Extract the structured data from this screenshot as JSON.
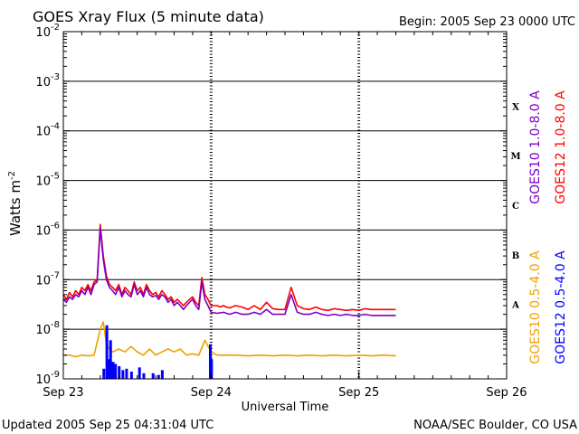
{
  "chart_data": {
    "type": "line",
    "title": "GOES Xray Flux (5 minute data)",
    "begin_label": "Begin:  2005 Sep 23 0000 UTC",
    "xlabel": "Universal Time",
    "ylabel": "Watts",
    "ylabel_unit_exp": "-2",
    "yscale": "log",
    "ylim": [
      1e-09,
      0.01
    ],
    "xlim_hours": [
      0,
      72
    ],
    "x_ticks": [
      {
        "hours": 0,
        "label": "Sep 23"
      },
      {
        "hours": 24,
        "label": "Sep 24"
      },
      {
        "hours": 48,
        "label": "Sep 25"
      },
      {
        "hours": 72,
        "label": "Sep 26"
      }
    ],
    "y_ticks": [
      {
        "value": 1e-09,
        "base": "10",
        "exp": "-9"
      },
      {
        "value": 1e-08,
        "base": "10",
        "exp": "-8"
      },
      {
        "value": 1e-07,
        "base": "10",
        "exp": "-7"
      },
      {
        "value": 1e-06,
        "base": "10",
        "exp": "-6"
      },
      {
        "value": 1e-05,
        "base": "10",
        "exp": "-5"
      },
      {
        "value": 0.0001,
        "base": "10",
        "exp": "-4"
      },
      {
        "value": 0.001,
        "base": "10",
        "exp": "-3"
      },
      {
        "value": 0.01,
        "base": "10",
        "exp": "-2"
      }
    ],
    "flare_classes": [
      {
        "label": "A",
        "value": 3.16e-08
      },
      {
        "label": "B",
        "value": 3.16e-07
      },
      {
        "label": "C",
        "value": 3.16e-06
      },
      {
        "label": "M",
        "value": 3.16e-05
      },
      {
        "label": "X",
        "value": 0.000316
      }
    ],
    "gridlines": [
      1e-08,
      1e-07,
      1e-06,
      1e-05,
      0.0001,
      0.001
    ],
    "legend": [
      {
        "label": "GOES10 1.0-8.0 A",
        "color": "#7a00c8"
      },
      {
        "label": "GOES12 1.0-8.0 A",
        "color": "#ff0000"
      },
      {
        "label": "GOES10 0.5-4.0 A",
        "color": "#f0a000"
      },
      {
        "label": "GOES12 0.5-4.0 A",
        "color": "#0000ff"
      }
    ],
    "series": [
      {
        "name": "GOES12 1.0-8.0 A",
        "color": "#ff0000",
        "style": "line",
        "x": [
          0,
          0.5,
          1,
          1.5,
          2,
          2.5,
          3,
          3.5,
          4,
          4.5,
          5,
          5.5,
          6,
          6.5,
          7,
          7.5,
          8,
          8.5,
          9,
          9.5,
          10,
          10.5,
          11,
          11.5,
          12,
          12.5,
          13,
          13.5,
          14,
          14.5,
          15,
          15.5,
          16,
          16.5,
          17,
          17.5,
          18,
          18.5,
          19,
          19.5,
          20,
          20.5,
          21,
          21.5,
          22,
          22.5,
          23,
          23.5,
          24,
          24.5,
          25,
          25.5,
          26,
          26.5,
          27,
          28,
          29,
          30,
          31,
          32,
          33,
          34,
          35,
          36,
          37,
          38,
          39,
          40,
          41,
          42,
          43,
          44,
          45,
          46,
          47,
          48,
          49,
          50,
          51,
          52,
          53,
          54
        ],
        "y": [
          5e-08,
          4e-08,
          5.5e-08,
          4.5e-08,
          6e-08,
          5e-08,
          7e-08,
          6e-08,
          8e-08,
          6e-08,
          9e-08,
          1e-07,
          1.3e-06,
          3e-07,
          1.2e-07,
          8e-08,
          7e-08,
          6e-08,
          8e-08,
          5e-08,
          7e-08,
          6e-08,
          5e-08,
          9e-08,
          6e-08,
          7e-08,
          5e-08,
          8e-08,
          6e-08,
          5e-08,
          5.5e-08,
          4.5e-08,
          6e-08,
          5e-08,
          4e-08,
          4.5e-08,
          3.5e-08,
          4e-08,
          3.5e-08,
          3e-08,
          3.5e-08,
          4e-08,
          4.5e-08,
          3.5e-08,
          3e-08,
          1.1e-07,
          5e-08,
          4e-08,
          3e-08,
          3e-08,
          3e-08,
          2.8e-08,
          3e-08,
          2.8e-08,
          2.7e-08,
          3e-08,
          2.8e-08,
          2.5e-08,
          3e-08,
          2.5e-08,
          3.5e-08,
          2.6e-08,
          2.5e-08,
          2.5e-08,
          7e-08,
          3e-08,
          2.6e-08,
          2.5e-08,
          2.8e-08,
          2.5e-08,
          2.4e-08,
          2.6e-08,
          2.5e-08,
          2.4e-08,
          2.5e-08,
          2.4e-08,
          2.6e-08,
          2.5e-08,
          2.5e-08,
          2.5e-08,
          2.5e-08,
          2.5e-08
        ]
      },
      {
        "name": "GOES10 1.0-8.0 A",
        "color": "#7a00c8",
        "style": "line",
        "x": [
          0,
          0.5,
          1,
          1.5,
          2,
          2.5,
          3,
          3.5,
          4,
          4.5,
          5,
          5.5,
          6,
          6.5,
          7,
          7.5,
          8,
          8.5,
          9,
          9.5,
          10,
          10.5,
          11,
          11.5,
          12,
          12.5,
          13,
          13.5,
          14,
          14.5,
          15,
          15.5,
          16,
          16.5,
          17,
          17.5,
          18,
          18.5,
          19,
          19.5,
          20,
          20.5,
          21,
          21.5,
          22,
          22.5,
          23,
          23.5,
          24,
          25,
          26,
          27,
          28,
          29,
          30,
          31,
          32,
          33,
          34,
          35,
          36,
          37,
          38,
          39,
          40,
          41,
          42,
          43,
          44,
          45,
          46,
          47,
          48,
          49,
          50,
          51,
          52,
          53,
          54
        ],
        "y": [
          4e-08,
          3.5e-08,
          4.5e-08,
          4e-08,
          5e-08,
          4.5e-08,
          6e-08,
          5e-08,
          7e-08,
          5e-08,
          8e-08,
          9e-08,
          1.1e-06,
          2.5e-07,
          1e-07,
          7e-08,
          6e-08,
          5e-08,
          7e-08,
          4.5e-08,
          6e-08,
          5e-08,
          4.5e-08,
          8e-08,
          5e-08,
          6e-08,
          4.5e-08,
          7e-08,
          5e-08,
          4.5e-08,
          4.8e-08,
          4e-08,
          5e-08,
          4.5e-08,
          3.5e-08,
          4e-08,
          3e-08,
          3.5e-08,
          3e-08,
          2.5e-08,
          3e-08,
          3.5e-08,
          4e-08,
          3e-08,
          2.5e-08,
          9e-08,
          4e-08,
          3e-08,
          2.2e-08,
          2.1e-08,
          2.2e-08,
          2e-08,
          2.2e-08,
          2e-08,
          2e-08,
          2.2e-08,
          2e-08,
          2.5e-08,
          2e-08,
          2e-08,
          2e-08,
          5e-08,
          2.2e-08,
          2e-08,
          2e-08,
          2.2e-08,
          2e-08,
          1.9e-08,
          2e-08,
          1.9e-08,
          2e-08,
          1.9e-08,
          1.9e-08,
          2e-08,
          1.9e-08,
          1.9e-08,
          1.9e-08,
          1.9e-08,
          1.9e-08
        ]
      },
      {
        "name": "GOES10 0.5-4.0 A",
        "color": "#f0a000",
        "style": "line",
        "x": [
          0,
          1,
          2,
          3,
          4,
          5,
          6,
          6.5,
          7,
          7.5,
          8,
          9,
          10,
          11,
          12,
          13,
          14,
          15,
          16,
          17,
          18,
          19,
          20,
          21,
          22,
          23,
          24,
          25,
          26,
          28,
          30,
          32,
          34,
          36,
          38,
          40,
          42,
          44,
          46,
          48,
          50,
          52,
          54
        ],
        "y": [
          3e-09,
          3e-09,
          2.8e-09,
          3e-09,
          2.9e-09,
          3e-09,
          1e-08,
          1.4e-08,
          5e-09,
          4e-09,
          3.5e-09,
          4e-09,
          3.5e-09,
          4.5e-09,
          3.5e-09,
          3e-09,
          4e-09,
          3e-09,
          3.5e-09,
          4e-09,
          3.5e-09,
          4e-09,
          3e-09,
          3.2e-09,
          3e-09,
          6e-09,
          3.5e-09,
          3e-09,
          3e-09,
          3e-09,
          2.9e-09,
          3e-09,
          2.9e-09,
          3e-09,
          2.9e-09,
          3e-09,
          2.9e-09,
          3e-09,
          2.9e-09,
          3e-09,
          2.9e-09,
          3e-09,
          2.9e-09
        ]
      },
      {
        "name": "GOES12 0.5-4.0 A",
        "color": "#0000ff",
        "style": "bars",
        "x": [
          6.5,
          7.0,
          7.3,
          7.6,
          8.0,
          8.4,
          9.0,
          9.6,
          10.2,
          11.0,
          12.3,
          13.0,
          14.5,
          15.4,
          16.0,
          23.8,
          24.0
        ],
        "y": [
          1.6e-09,
          1.2e-08,
          2.5e-09,
          6e-09,
          2.2e-09,
          2e-09,
          1.8e-09,
          1.5e-09,
          1.6e-09,
          1.4e-09,
          1.7e-09,
          1.3e-09,
          1.3e-09,
          1.2e-09,
          1.5e-09,
          5e-09,
          2.5e-09
        ]
      }
    ]
  },
  "footer": {
    "updated": "Updated 2005 Sep 25 04:31:04 UTC",
    "credit": "NOAA/SEC Boulder, CO USA"
  }
}
